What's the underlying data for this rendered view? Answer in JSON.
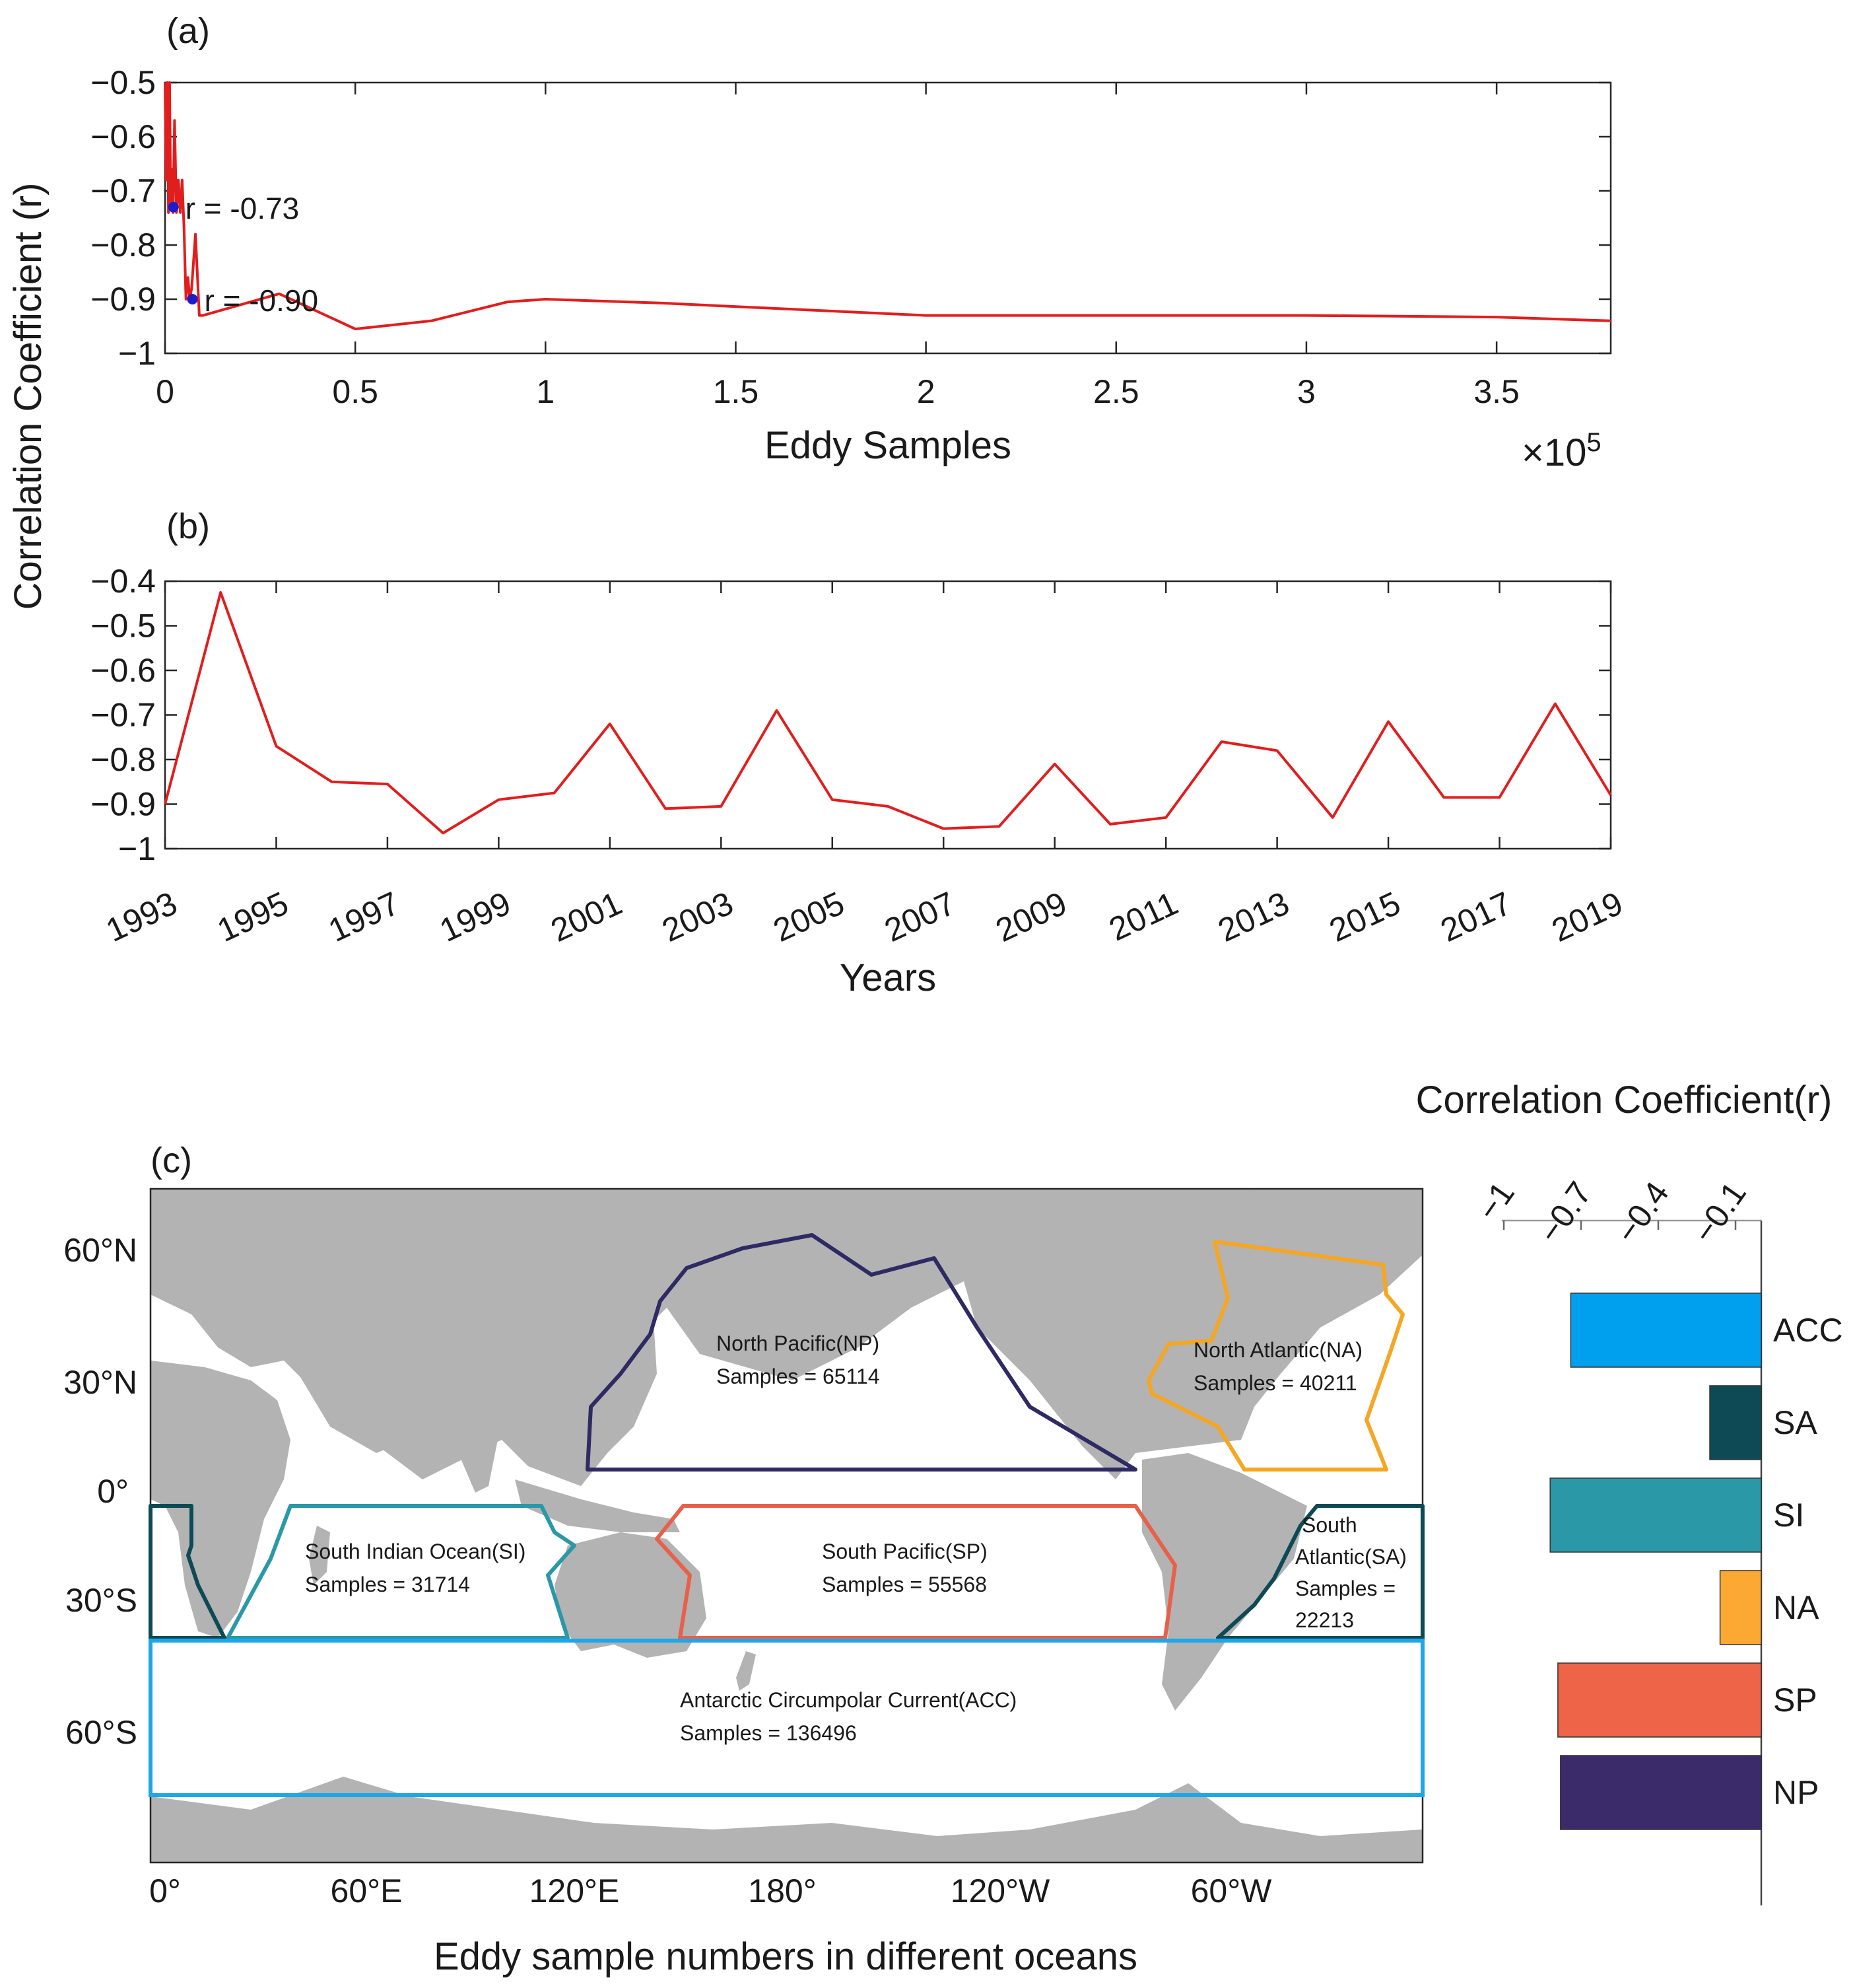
{
  "chart_data": [
    {
      "id": "a",
      "type": "line",
      "panel_label": "(a)",
      "xlabel": "Eddy Samples",
      "ylabel": "Correlation Coefficient (r)",
      "x_scale_label": "×10",
      "x_scale_exp": "5",
      "xlim": [
        0,
        3.8
      ],
      "ylim": [
        -1,
        -0.5
      ],
      "x_ticks": [
        0,
        0.5,
        1,
        1.5,
        2,
        2.5,
        3,
        3.5
      ],
      "x_tick_labels": [
        "0",
        "0.5",
        "1",
        "1.5",
        "2",
        "2.5",
        "3",
        "3.5"
      ],
      "y_ticks": [
        -0.5,
        -0.6,
        -0.7,
        -0.8,
        -0.9,
        -1
      ],
      "y_tick_labels": [
        "−0.5",
        "−0.6",
        "−0.7",
        "−0.8",
        "−0.9",
        "−1"
      ],
      "line_color": "#e01e1e",
      "x": [
        0,
        0.003,
        0.006,
        0.009,
        0.012,
        0.015,
        0.018,
        0.021,
        0.025,
        0.03,
        0.035,
        0.04,
        0.045,
        0.05,
        0.055,
        0.06,
        0.065,
        0.07,
        0.08,
        0.09,
        0.1,
        0.3,
        0.5,
        0.7,
        0.9,
        1.0,
        1.3,
        1.6,
        2.0,
        2.5,
        3.0,
        3.5,
        3.8
      ],
      "y": [
        -0.5,
        -0.68,
        -0.5,
        -0.74,
        -0.5,
        -0.73,
        -0.66,
        -0.74,
        -0.57,
        -0.74,
        -0.68,
        -0.74,
        -0.68,
        -0.77,
        -0.9,
        -0.86,
        -0.9,
        -0.88,
        -0.78,
        -0.93,
        -0.93,
        -0.89,
        -0.955,
        -0.94,
        -0.905,
        -0.9,
        -0.907,
        -0.917,
        -0.93,
        -0.93,
        -0.93,
        -0.933,
        -0.94
      ],
      "markers": [
        {
          "x": 0.022,
          "y": -0.73,
          "label": "r = -0.73"
        },
        {
          "x": 0.072,
          "y": -0.9,
          "label": "r = -0.90"
        }
      ],
      "marker_color": "#1c1ccc"
    },
    {
      "id": "b",
      "type": "line",
      "panel_label": "(b)",
      "xlabel": "Years",
      "ylim": [
        -1,
        -0.4
      ],
      "xlim": [
        1993,
        2019
      ],
      "x_tick_labels": [
        "1993",
        "1995",
        "1997",
        "1999",
        "2001",
        "2003",
        "2005",
        "2007",
        "2009",
        "2011",
        "2013",
        "2015",
        "2017",
        "2019"
      ],
      "y_tick_labels": [
        "−0.4",
        "−0.5",
        "−0.6",
        "−0.7",
        "−0.8",
        "−0.9",
        "−1"
      ],
      "line_color": "#e01e1e",
      "x": [
        1993,
        1994,
        1995,
        1996,
        1997,
        1998,
        1999,
        2000,
        2001,
        2002,
        2003,
        2004,
        2005,
        2006,
        2007,
        2008,
        2009,
        2010,
        2011,
        2012,
        2013,
        2014,
        2015,
        2016,
        2017,
        2018,
        2019
      ],
      "y": [
        -0.9,
        -0.425,
        -0.77,
        -0.85,
        -0.855,
        -0.965,
        -0.89,
        -0.875,
        -0.72,
        -0.91,
        -0.905,
        -0.69,
        -0.89,
        -0.905,
        -0.955,
        -0.95,
        -0.81,
        -0.945,
        -0.93,
        -0.76,
        -0.78,
        -0.93,
        -0.715,
        -0.885,
        -0.885,
        -0.675,
        -0.88
      ]
    },
    {
      "id": "c",
      "type": "bar",
      "orientation": "horizontal",
      "panel_label": "(c)",
      "title": "Correlation Coefficient(r)",
      "caption": "Eddy sample numbers in different oceans",
      "xlim": [
        -1,
        0
      ],
      "x_ticks": [
        -1,
        -0.7,
        -0.4,
        -0.1
      ],
      "x_tick_labels": [
        "−1",
        "−0.7",
        "−0.4",
        "−0.1"
      ],
      "categories": [
        "ACC",
        "SA",
        "SI",
        "NA",
        "SP",
        "NP"
      ],
      "values": [
        -0.74,
        -0.2,
        -0.82,
        -0.16,
        -0.79,
        -0.78
      ],
      "colors": [
        "#00a0ee",
        "#0e4a56",
        "#2a98a6",
        "#fba932",
        "#ed6448",
        "#3b2b6a"
      ]
    }
  ],
  "map": {
    "lon_labels": [
      "0°",
      "60°E",
      "120°E",
      "180°",
      "120°W",
      "60°W"
    ],
    "lat_labels": [
      "60°N",
      "30°N",
      "0°",
      "30°S",
      "60°S"
    ],
    "regions": [
      {
        "key": "NP",
        "name": "North Pacific(NP)",
        "samples": "Samples = 65114",
        "color": "#2e2a63"
      },
      {
        "key": "NA",
        "name": "North Atlantic(NA)",
        "samples": "Samples = 40211",
        "color": "#f5a623"
      },
      {
        "key": "SI",
        "name": "South Indian Ocean(SI)",
        "samples": "Samples = 31714",
        "color": "#2a98a6"
      },
      {
        "key": "SP",
        "name": "South Pacific(SP)",
        "samples": "Samples = 55568",
        "color": "#e8604a"
      },
      {
        "key": "SA",
        "name_lines": [
          "South",
          "Atlantic(SA)",
          "Samples =",
          "22213"
        ],
        "color": "#0e4a56"
      },
      {
        "key": "ACC",
        "name": "Antarctic Circumpolar Current(ACC)",
        "samples": "Samples = 136496",
        "color": "#1ea7e8"
      }
    ]
  }
}
